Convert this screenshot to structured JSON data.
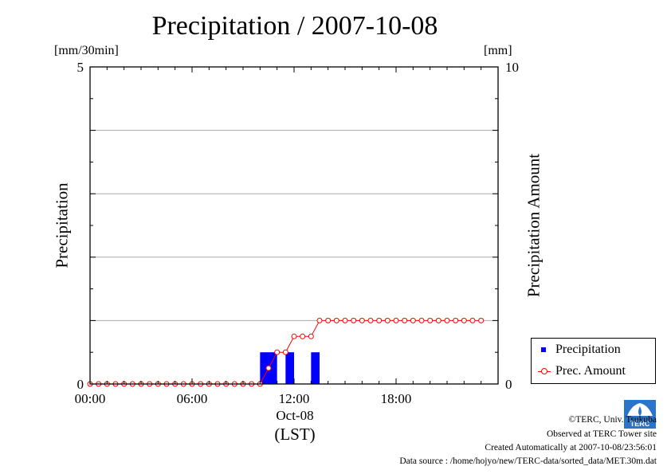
{
  "title": "Precipitation / 2007-10-08",
  "y_left_unit": "[mm/30min]",
  "y_right_unit": "[mm]",
  "y_left_label": "Precipitation",
  "y_right_label": "Precipitation Amount",
  "x_date_label": "Oct-08",
  "x_time_label": "(LST)",
  "legend": {
    "precip_label": "Precipitation",
    "amount_label": "Prec. Amount"
  },
  "credits": {
    "copyright": "©TERC, Univ. Tsukuba",
    "observed": "Observed at TERC Tower site",
    "created": "Created Automatically at 2007-10-08/23:56:01",
    "source": "Data source : /home/hojyo/new/TERC-data/sorted_data/MET.30m.dat"
  },
  "logo_text": "TERC",
  "colors": {
    "bar": "#0000ff",
    "line": "#ff0000",
    "grid": "#aaaaaa"
  },
  "chart_data": {
    "type": "bar",
    "x_unit": "hours (LST)",
    "xlim": [
      0,
      24
    ],
    "x_ticks": [
      "00:00",
      "06:00",
      "12:00",
      "18:00"
    ],
    "y_left_ticks": [
      "0",
      "5"
    ],
    "y_right_ticks": [
      "0",
      "10"
    ],
    "ylim_left": [
      0,
      5
    ],
    "ylim_right": [
      0,
      10
    ],
    "grid": true,
    "legend_position": "bottom-right",
    "series": [
      {
        "name": "Precipitation",
        "type": "bar",
        "axis": "left",
        "x": [
          10.0,
          10.5,
          11.5,
          13.0
        ],
        "values": [
          0.5,
          0.5,
          0.5,
          0.5
        ]
      },
      {
        "name": "Prec. Amount",
        "type": "line",
        "axis": "right",
        "x": [
          0,
          0.5,
          1,
          1.5,
          2,
          2.5,
          3,
          3.5,
          4,
          4.5,
          5,
          5.5,
          6,
          6.5,
          7,
          7.5,
          8,
          8.5,
          9,
          9.5,
          10,
          10.5,
          11,
          11.5,
          12,
          12.5,
          13,
          13.5,
          14,
          14.5,
          15,
          15.5,
          16,
          16.5,
          17,
          17.5,
          18,
          18.5,
          19,
          19.5,
          20,
          20.5,
          21,
          21.5,
          22,
          22.5,
          23
        ],
        "values": [
          0,
          0,
          0,
          0,
          0,
          0,
          0,
          0,
          0,
          0,
          0,
          0,
          0,
          0,
          0,
          0,
          0,
          0,
          0,
          0,
          0,
          0.5,
          1,
          1,
          1.5,
          1.5,
          1.5,
          2,
          2,
          2,
          2,
          2,
          2,
          2,
          2,
          2,
          2,
          2,
          2,
          2,
          2,
          2,
          2,
          2,
          2,
          2,
          2
        ]
      }
    ]
  }
}
